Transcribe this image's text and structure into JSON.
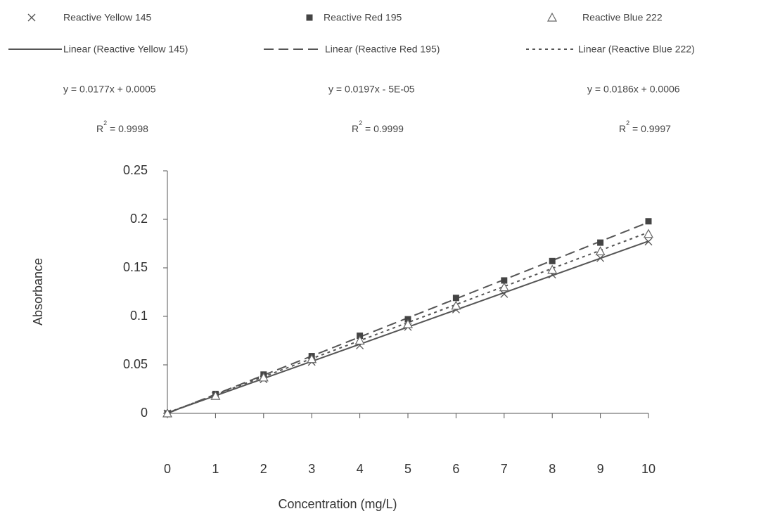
{
  "chart_data": {
    "type": "scatter",
    "x_label": "Concentration (mg/L)",
    "y_label": "Absorbance",
    "x": [
      0,
      1,
      2,
      3,
      4,
      5,
      6,
      7,
      8,
      9,
      10
    ],
    "xlim": [
      0,
      10
    ],
    "xticks": [
      0,
      1,
      2,
      3,
      4,
      5,
      6,
      7,
      8,
      9,
      10
    ],
    "ylim": [
      0,
      0.25
    ],
    "yticks": [
      0,
      0.05,
      0.1,
      0.15,
      0.2,
      0.25
    ],
    "series": [
      {
        "name": "Reactive Yellow 145",
        "color": "#555555",
        "marker": "x",
        "values": [
          0,
          0.018,
          0.035,
          0.053,
          0.07,
          0.089,
          0.107,
          0.123,
          0.143,
          0.16,
          0.177
        ]
      },
      {
        "name": "Reactive Red 195",
        "color": "#444444",
        "marker": "square",
        "values": [
          0,
          0.02,
          0.04,
          0.059,
          0.08,
          0.097,
          0.119,
          0.137,
          0.157,
          0.176,
          0.198
        ]
      },
      {
        "name": "Reactive Blue 222",
        "color": "#666666",
        "marker": "triangle",
        "values": [
          0,
          0.018,
          0.037,
          0.056,
          0.075,
          0.092,
          0.111,
          0.13,
          0.148,
          0.167,
          0.185
        ]
      }
    ],
    "trendlines": [
      {
        "name": "Linear (Reactive Yellow 145)",
        "dash": "solid",
        "color": "#555555",
        "equation": "y = 0.0177x + 0.0005",
        "slope": 0.0177,
        "intercept": 0.0005,
        "r2": {
          "symbol": "R",
          "power": "2",
          "text": " = 0.9998"
        }
      },
      {
        "name": "Linear (Reactive Red 195)",
        "dash": "dashed",
        "color": "#555555",
        "equation": "y = 0.0197x - 5E-05",
        "slope": 0.0197,
        "intercept": -5e-05,
        "r2": {
          "symbol": "R",
          "power": "2",
          "text": " = 0.9999"
        }
      },
      {
        "name": "Linear (Reactive Blue 222)",
        "dash": "dotted",
        "color": "#555555",
        "equation": "y = 0.0186x + 0.0006",
        "slope": 0.0186,
        "intercept": 0.0006,
        "r2": {
          "symbol": "R",
          "power": "2",
          "text": " = 0.9997"
        }
      }
    ]
  }
}
